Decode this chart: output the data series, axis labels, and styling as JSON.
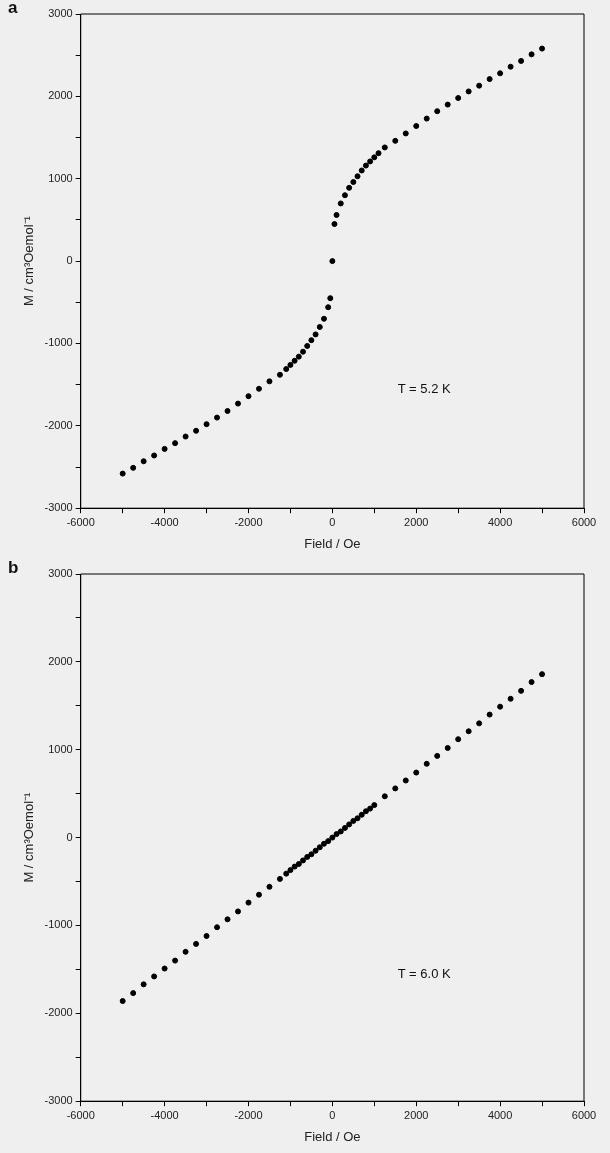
{
  "chart_data": [
    {
      "type": "scatter",
      "title": "a",
      "xlabel": "Field / Oe",
      "ylabel": "M / cm³Oemol⁻¹",
      "annotations": [
        "T = 5.2 K"
      ],
      "marker": "circle",
      "grid": false,
      "xlim": [
        -6000,
        6000
      ],
      "ylim": [
        -3000,
        3000
      ],
      "xticks": [
        -6000,
        {
          "value": -5000,
          "label": null
        },
        -4000,
        {
          "value": -3000,
          "label": null
        },
        -2000,
        {
          "value": -1000,
          "label": null
        },
        0,
        {
          "value": 1000,
          "label": null
        },
        2000,
        {
          "value": 3000,
          "label": null
        },
        4000,
        {
          "value": 5000,
          "label": null
        },
        6000
      ],
      "yticks": [
        -3000,
        {
          "value": -2500,
          "label": null
        },
        -2000,
        {
          "value": -1500,
          "label": null
        },
        -1000,
        {
          "value": -500,
          "label": null
        },
        0,
        {
          "value": 500,
          "label": null
        },
        1000,
        {
          "value": 1500,
          "label": null
        },
        2000,
        {
          "value": 2500,
          "label": null
        },
        3000
      ],
      "series": [
        {
          "color": "#000000",
          "x": [
            -5000,
            -4750,
            -4500,
            -4250,
            -4000,
            -3750,
            -3500,
            -3250,
            -3000,
            -2750,
            -2500,
            -2250,
            -2000,
            -1750,
            -1500,
            -1250,
            -1100,
            -1000,
            -900,
            -800,
            -700,
            -600,
            -500,
            -400,
            -300,
            -200,
            -100,
            -50,
            0,
            50,
            100,
            200,
            300,
            400,
            500,
            600,
            700,
            800,
            900,
            1000,
            1100,
            1250,
            1500,
            1750,
            2000,
            2250,
            2500,
            2750,
            3000,
            3250,
            3500,
            3750,
            4000,
            4250,
            4500,
            4750,
            5000
          ],
          "values": [
            -2580,
            -2510,
            -2430,
            -2360,
            -2280,
            -2210,
            -2130,
            -2060,
            -1980,
            -1900,
            -1820,
            -1730,
            -1640,
            -1550,
            -1460,
            -1380,
            -1310,
            -1260,
            -1210,
            -1160,
            -1100,
            -1030,
            -960,
            -890,
            -800,
            -700,
            -560,
            -450,
            0,
            450,
            560,
            700,
            800,
            890,
            960,
            1030,
            1100,
            1160,
            1210,
            1260,
            1310,
            1380,
            1460,
            1550,
            1640,
            1730,
            1820,
            1900,
            1980,
            2060,
            2130,
            2210,
            2280,
            2360,
            2430,
            2510,
            2580
          ]
        }
      ]
    },
    {
      "type": "scatter",
      "title": "b",
      "xlabel": "Field / Oe",
      "ylabel": "M / cm³Oemol⁻¹",
      "annotations": [
        "T = 6.0 K"
      ],
      "marker": "circle",
      "grid": false,
      "xlim": [
        -6000,
        6000
      ],
      "ylim": [
        -3000,
        3000
      ],
      "xticks": [
        -6000,
        {
          "value": -5000,
          "label": null
        },
        -4000,
        {
          "value": -3000,
          "label": null
        },
        -2000,
        {
          "value": -1000,
          "label": null
        },
        0,
        {
          "value": 1000,
          "label": null
        },
        2000,
        {
          "value": 3000,
          "label": null
        },
        4000,
        {
          "value": 5000,
          "label": null
        },
        6000
      ],
      "yticks": [
        -3000,
        {
          "value": -2500,
          "label": null
        },
        -2000,
        {
          "value": -1500,
          "label": null
        },
        -1000,
        {
          "value": -500,
          "label": null
        },
        0,
        {
          "value": 500,
          "label": null
        },
        1000,
        {
          "value": 1500,
          "label": null
        },
        2000,
        {
          "value": 2500,
          "label": null
        },
        3000
      ],
      "series": [
        {
          "color": "#000000",
          "x": [
            -5000,
            -4750,
            -4500,
            -4250,
            -4000,
            -3750,
            -3500,
            -3250,
            -3000,
            -2750,
            -2500,
            -2250,
            -2000,
            -1750,
            -1500,
            -1250,
            -1100,
            -1000,
            -900,
            -800,
            -700,
            -600,
            -500,
            -400,
            -300,
            -200,
            -100,
            0,
            100,
            200,
            300,
            400,
            500,
            600,
            700,
            800,
            900,
            1000,
            1250,
            1500,
            1750,
            2000,
            2250,
            2500,
            2750,
            3000,
            3250,
            3500,
            3750,
            4000,
            4250,
            4500,
            4750,
            5000
          ],
          "values": [
            -1860,
            -1770,
            -1670,
            -1580,
            -1490,
            -1400,
            -1300,
            -1210,
            -1120,
            -1020,
            -930,
            -840,
            -740,
            -650,
            -560,
            -470,
            -410,
            -370,
            -330,
            -300,
            -260,
            -220,
            -190,
            -150,
            -110,
            -70,
            -40,
            0,
            40,
            70,
            110,
            150,
            190,
            220,
            260,
            300,
            330,
            370,
            470,
            560,
            650,
            740,
            840,
            930,
            1020,
            1120,
            1210,
            1300,
            1400,
            1490,
            1580,
            1670,
            1770,
            1860
          ]
        }
      ]
    }
  ]
}
